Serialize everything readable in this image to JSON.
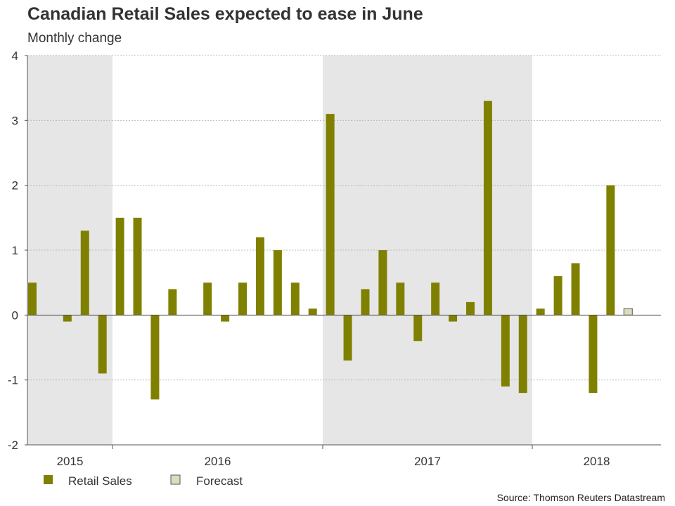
{
  "title": "Canadian Retail Sales expected to ease in June",
  "subtitle": "Monthly change",
  "source": "Source: Thomson Reuters Datastream",
  "colors": {
    "bar": "#808000",
    "forecast": "#dedcc0",
    "forecast_border": "#555555",
    "shade": "#e6e6e6",
    "grid": "#bbbbbb",
    "axis": "#555555"
  },
  "chart_data": {
    "type": "bar",
    "title": "Canadian Retail Sales expected to ease in June",
    "ylabel": "Monthly change",
    "ylim": [
      -2,
      4
    ],
    "yticks": [
      -2,
      -1,
      0,
      1,
      2,
      3,
      4
    ],
    "year_labels": [
      "2015",
      "2016",
      "2017",
      "2018"
    ],
    "shaded_years": [
      "2015",
      "2017"
    ],
    "series": [
      {
        "name": "Retail Sales",
        "values": [
          0.5,
          null,
          -0.1,
          1.3,
          -0.9,
          1.5,
          1.5,
          -1.3,
          0.4,
          null,
          0.5,
          -0.1,
          0.5,
          1.2,
          1.0,
          0.5,
          0.1,
          3.1,
          -0.7,
          0.4,
          1.0,
          0.5,
          -0.4,
          0.5,
          -0.1,
          0.2,
          3.3,
          -1.1,
          -1.2,
          0.1,
          0.6,
          0.8,
          -1.2,
          2.0,
          null
        ]
      },
      {
        "name": "Forecast",
        "values": [
          null,
          null,
          null,
          null,
          null,
          null,
          null,
          null,
          null,
          null,
          null,
          null,
          null,
          null,
          null,
          null,
          null,
          null,
          null,
          null,
          null,
          null,
          null,
          null,
          null,
          null,
          null,
          null,
          null,
          null,
          null,
          null,
          null,
          null,
          0.1
        ]
      }
    ],
    "legend": [
      "Retail Sales",
      "Forecast"
    ]
  }
}
